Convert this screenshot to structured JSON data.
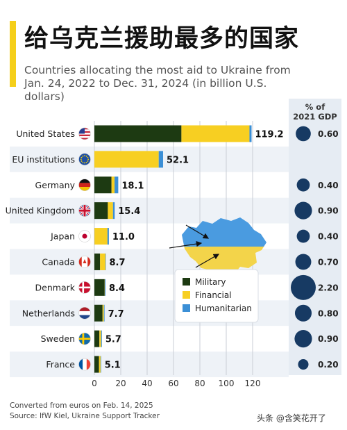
{
  "header": {
    "title": "给乌克兰援助最多的国家",
    "subtitle": "Countries allocating the most aid to Ukraine from Jan. 24, 2022 to Dec. 31, 2024 (in billion U.S. dollars)"
  },
  "gdp_header": {
    "line1": "% of",
    "line2": "2021 GDP"
  },
  "footer": {
    "note": "Converted from euros on Feb. 14, 2025",
    "source": "Source: IfW Kiel, Ukraine Support Tracker"
  },
  "watermark": "头条 @含笑花开了",
  "colors": {
    "military": "#1d3a12",
    "financial": "#f7cf22",
    "humanitarian": "#3b8fd6",
    "accent": "#f5cf1a",
    "bubble": "#173a63",
    "stripe": "#eef2f7",
    "map_blue": "#4a9be0",
    "map_yellow": "#f3d44a"
  },
  "chart_data": {
    "type": "bar",
    "orientation": "horizontal",
    "stacked": true,
    "categories": [
      "United States",
      "EU institutions",
      "Germany",
      "United Kingdom",
      "Japan",
      "Canada",
      "Denmark",
      "Netherlands",
      "Sweden",
      "France"
    ],
    "flags": [
      "us",
      "eu",
      "de",
      "gb",
      "jp",
      "ca",
      "dk",
      "nl",
      "se",
      "fr"
    ],
    "series": [
      {
        "name": "Military",
        "values": [
          66.0,
          0,
          13.0,
          10.2,
          0.1,
          4.3,
          7.8,
          6.2,
          3.8,
          3.5
        ]
      },
      {
        "name": "Financial",
        "values": [
          51.6,
          48.8,
          2.3,
          3.9,
          9.8,
          4.1,
          0.1,
          1.0,
          1.3,
          1.2
        ]
      },
      {
        "name": "Humanitarian",
        "values": [
          1.6,
          3.3,
          2.8,
          1.3,
          1.1,
          0.3,
          0.5,
          0.5,
          0.6,
          0.4
        ]
      }
    ],
    "totals": [
      "119.2",
      "52.1",
      "18.1",
      "15.4",
      "11.0",
      "8.7",
      "8.4",
      "7.7",
      "5.7",
      "5.1"
    ],
    "gdp_share": [
      0.6,
      null,
      0.4,
      0.9,
      0.4,
      0.7,
      2.2,
      0.8,
      0.9,
      0.2
    ],
    "gdp_labels": [
      "0.60",
      "",
      "0.40",
      "0.90",
      "0.40",
      "0.70",
      "2.20",
      "0.80",
      "0.90",
      "0.20"
    ],
    "x_ticks": [
      0,
      20,
      40,
      60,
      80,
      100,
      120
    ],
    "xlim": [
      0,
      125
    ],
    "grid": true,
    "legend": {
      "position": "center-right",
      "entries": [
        "Military",
        "Financial",
        "Humanitarian"
      ]
    }
  }
}
